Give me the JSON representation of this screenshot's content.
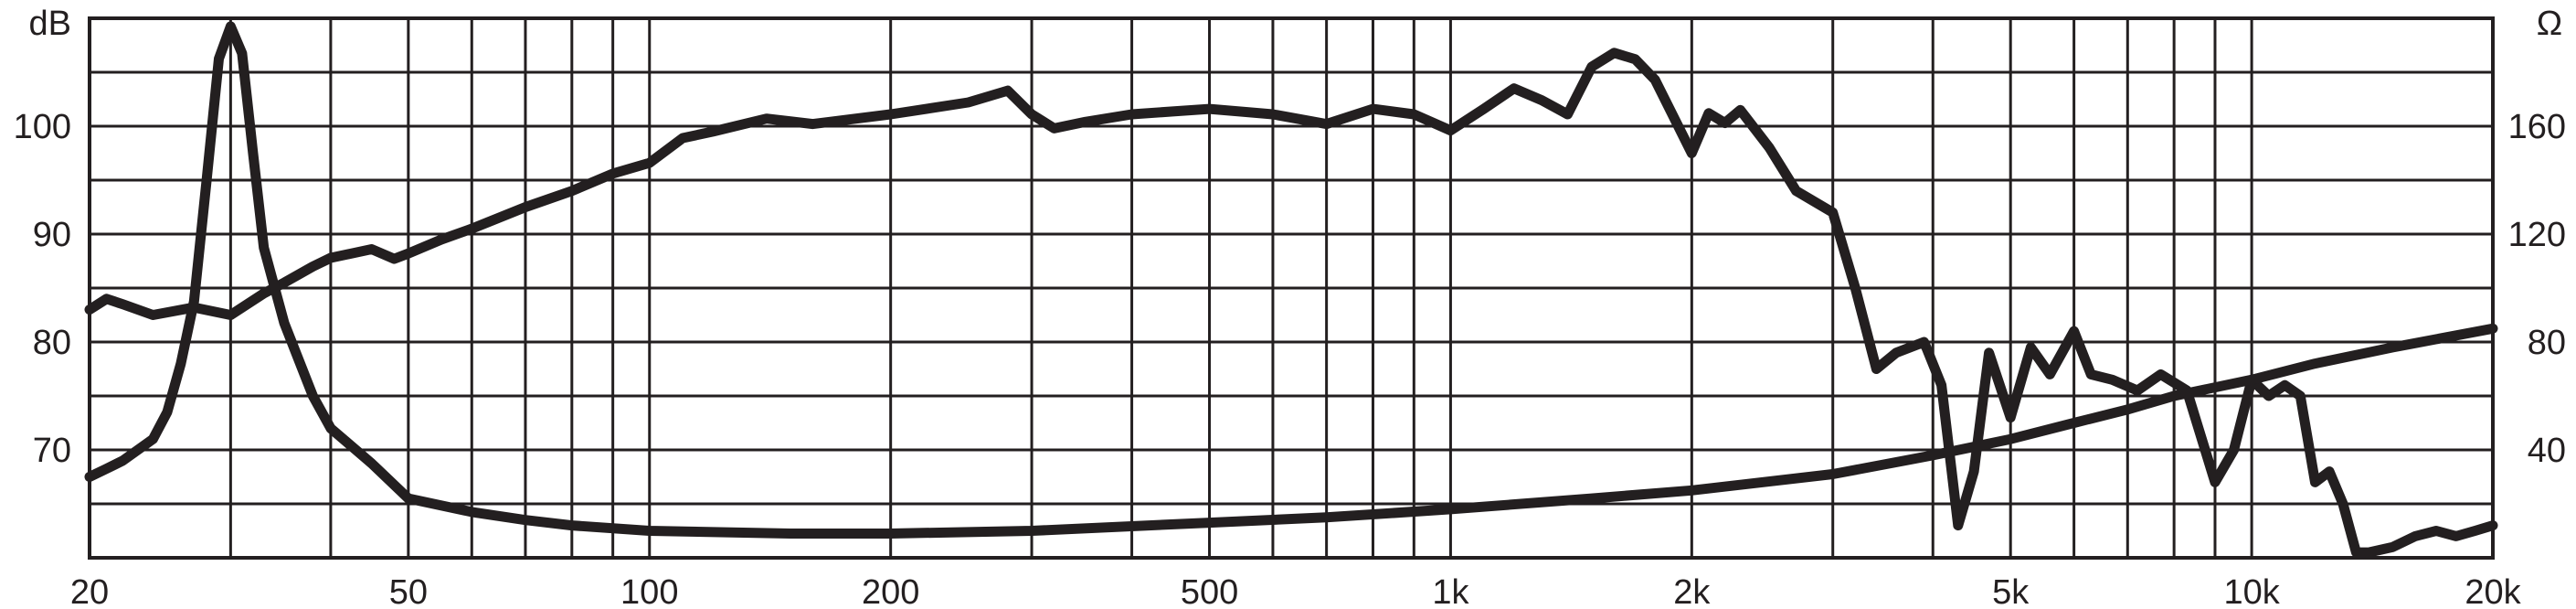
{
  "chart_data": {
    "type": "line",
    "xscale": "log",
    "xlim": [
      20,
      20000
    ],
    "x_ticks": [
      {
        "value": 20,
        "label": "20"
      },
      {
        "value": 50,
        "label": "50"
      },
      {
        "value": 100,
        "label": "100"
      },
      {
        "value": 200,
        "label": "200"
      },
      {
        "value": 500,
        "label": "500"
      },
      {
        "value": 1000,
        "label": "1k"
      },
      {
        "value": 2000,
        "label": "2k"
      },
      {
        "value": 5000,
        "label": "5k"
      },
      {
        "value": 10000,
        "label": "10k"
      },
      {
        "value": 20000,
        "label": "20k"
      }
    ],
    "left_axis": {
      "unit": "dB",
      "ylim": [
        60,
        110
      ],
      "ticks": [
        70,
        80,
        90,
        100
      ]
    },
    "right_axis": {
      "unit": "Ω",
      "ylim": [
        0,
        200
      ],
      "ticks": [
        40,
        80,
        120,
        160
      ]
    },
    "grid": true,
    "line_color": "#231f20",
    "series": [
      {
        "axis": "left",
        "x": [
          20,
          21,
          22,
          24,
          27,
          30,
          33,
          35,
          38,
          40,
          45,
          48,
          50,
          55,
          60,
          70,
          80,
          90,
          100,
          110,
          120,
          140,
          160,
          200,
          250,
          280,
          300,
          320,
          350,
          400,
          500,
          600,
          700,
          800,
          900,
          1000,
          1100,
          1200,
          1300,
          1400,
          1500,
          1600,
          1700,
          1800,
          2000,
          2100,
          2200,
          2300,
          2500,
          2700,
          3000,
          3200,
          3400,
          3600,
          3900,
          4100,
          4300,
          4500,
          4700,
          5000,
          5300,
          5600,
          6000,
          6300,
          6700,
          7200,
          7700,
          8300,
          9000,
          9500,
          10000,
          10500,
          11000,
          11500,
          12000,
          12500,
          13000,
          13500,
          14000,
          15000,
          16000,
          17000,
          18000,
          19000,
          20000
        ],
        "y": [
          83,
          84,
          83.5,
          82.5,
          83.2,
          82.5,
          84.5,
          85.5,
          87,
          87.8,
          88.6,
          87.7,
          88.2,
          89.5,
          90.5,
          92.5,
          94,
          95.6,
          96.6,
          98.9,
          99.5,
          100.7,
          100.2,
          101.1,
          102.2,
          103.3,
          101.1,
          99.8,
          100.4,
          101.1,
          101.6,
          101.1,
          100.2,
          101.6,
          101.1,
          99.6,
          101.6,
          103.5,
          102.4,
          101.1,
          105.5,
          106.8,
          106.2,
          104.3,
          97.5,
          101.2,
          100.3,
          101.5,
          98,
          94,
          92,
          85,
          77.5,
          79,
          80,
          76,
          63,
          68,
          79,
          73,
          79.5,
          77,
          81,
          77,
          76.5,
          75.5,
          77,
          75.5,
          67,
          70,
          76.5,
          75,
          76,
          75,
          67,
          68,
          65,
          60.5,
          60.5,
          61,
          62,
          62.5,
          62,
          62.5,
          63
        ]
      },
      {
        "axis": "right",
        "x": [
          20,
          21,
          22,
          24,
          25,
          26,
          27,
          28,
          29,
          30,
          31,
          32,
          33,
          35,
          38,
          40,
          45,
          50,
          60,
          70,
          80,
          100,
          150,
          200,
          300,
          500,
          700,
          1000,
          1500,
          2000,
          3000,
          4000,
          5000,
          6000,
          7000,
          8000,
          10000,
          12000,
          15000,
          20000
        ],
        "y": [
          30,
          33,
          36,
          44,
          54,
          72,
          95,
          140,
          185,
          197,
          187,
          150,
          115,
          87,
          60,
          48,
          35,
          22,
          17,
          14,
          12,
          10,
          9,
          9,
          10,
          13,
          15,
          18,
          22,
          25,
          31,
          38,
          44,
          50,
          55,
          60,
          66,
          72,
          78,
          85
        ]
      }
    ]
  }
}
